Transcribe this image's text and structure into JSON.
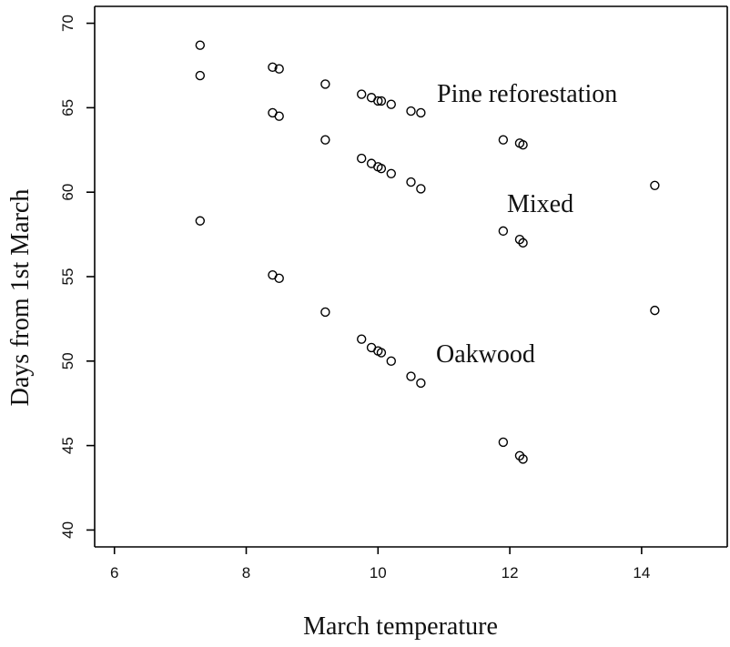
{
  "chart_data": {
    "type": "scatter",
    "xlabel": "March temperature",
    "ylabel": "Days from 1st March",
    "xlim": [
      5.7,
      15.3
    ],
    "ylim": [
      39.0,
      71.0
    ],
    "xticks": [
      6,
      8,
      10,
      12,
      14
    ],
    "yticks": [
      40,
      45,
      50,
      55,
      60,
      65,
      70
    ],
    "grid": false,
    "marker": "open-circle",
    "series": [
      {
        "name": "Pine reforestation",
        "x": [
          7.3,
          8.4,
          8.5,
          9.2,
          9.75,
          9.9,
          10.0,
          10.05,
          10.2,
          10.5,
          10.65,
          11.9,
          12.15,
          12.2
        ],
        "y": [
          68.7,
          67.4,
          67.3,
          66.4,
          65.8,
          65.6,
          65.4,
          65.4,
          65.2,
          64.8,
          64.7,
          63.1,
          62.9,
          62.8
        ]
      },
      {
        "name": "Mixed",
        "x": [
          7.3,
          8.4,
          8.5,
          9.2,
          9.75,
          9.9,
          10.0,
          10.05,
          10.2,
          10.5,
          10.65,
          11.9,
          12.15,
          12.2,
          14.2
        ],
        "y": [
          66.9,
          64.7,
          64.5,
          63.1,
          62.0,
          61.7,
          61.5,
          61.4,
          61.1,
          60.6,
          60.2,
          57.7,
          57.2,
          57.0,
          60.4
        ]
      },
      {
        "name": "Oakwood",
        "x": [
          7.3,
          8.4,
          8.5,
          9.2,
          9.75,
          9.9,
          10.0,
          10.05,
          10.2,
          10.5,
          10.65,
          11.9,
          12.15,
          12.2,
          14.2
        ],
        "y": [
          58.3,
          55.1,
          54.9,
          52.9,
          51.3,
          50.8,
          50.6,
          50.5,
          50.0,
          49.1,
          48.7,
          45.2,
          44.4,
          44.2,
          53.0
        ]
      }
    ],
    "annotations": [
      {
        "text": "Pine reforestation",
        "series": "Pine reforestation"
      },
      {
        "text": "Mixed",
        "series": "Mixed"
      },
      {
        "text": "Oakwood",
        "series": "Oakwood"
      }
    ]
  }
}
